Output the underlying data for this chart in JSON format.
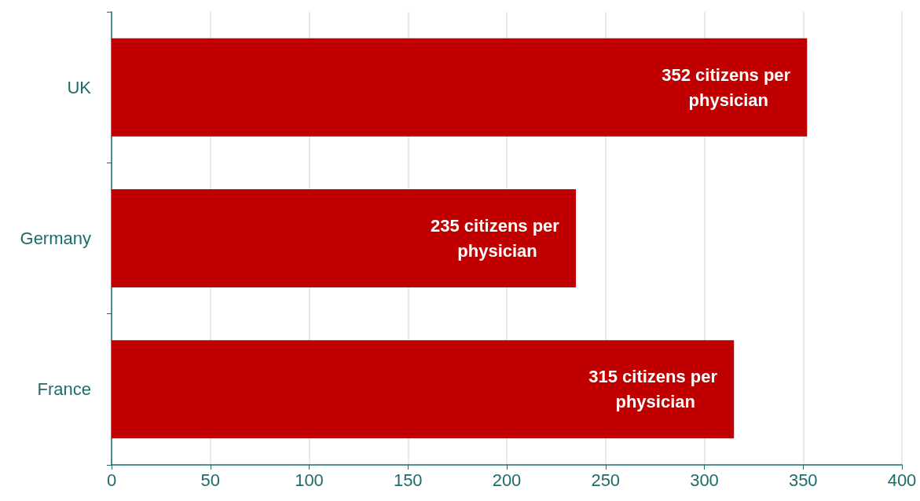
{
  "chart_data": {
    "type": "bar",
    "orientation": "horizontal",
    "categories": [
      "UK",
      "Germany",
      "France"
    ],
    "values": [
      352,
      235,
      315
    ],
    "color": "#c00000",
    "value_labels": [
      "352 citizens per physician",
      "235 citizens per physician",
      "315 citizens per physician"
    ],
    "xlim": [
      0,
      400
    ],
    "xticks": [
      0,
      50,
      100,
      150,
      200,
      250,
      300,
      350,
      400
    ],
    "grid": "x"
  }
}
